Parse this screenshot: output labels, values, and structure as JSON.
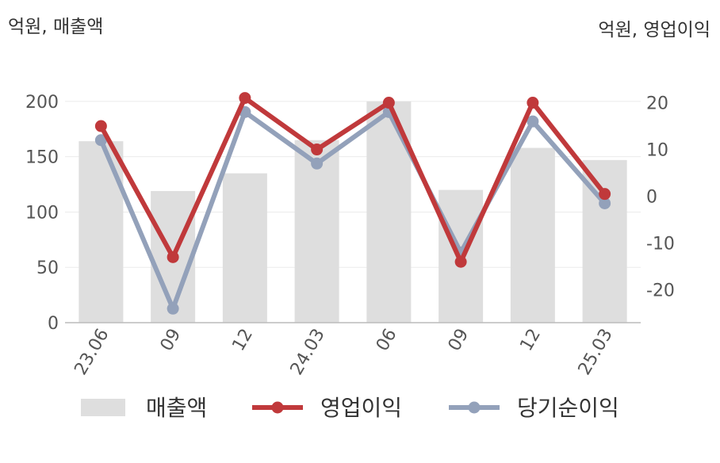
{
  "chart_data": {
    "type": "bar",
    "categories": [
      "23.06",
      "09",
      "12",
      "24.03",
      "06",
      "09",
      "12",
      "25.03"
    ],
    "left_axis": {
      "label": "억원, 매출액",
      "ylim": [
        0,
        220
      ],
      "ticks": [
        0,
        50,
        100,
        150,
        200
      ]
    },
    "right_axis": {
      "label": "억원, 영업이익",
      "ylim": [
        -27,
        25
      ],
      "ticks": [
        -20,
        -10,
        0,
        10,
        20
      ]
    },
    "grid": true,
    "legend_position": "bottom",
    "series": [
      {
        "name": "매출액",
        "kind": "bar",
        "axis": "left",
        "color": "#dedede",
        "values": [
          164,
          119,
          135,
          165,
          200,
          120,
          158,
          147
        ]
      },
      {
        "name": "영업이익",
        "kind": "line",
        "axis": "right",
        "color": "#c0393b",
        "values": [
          15,
          -13,
          21,
          10,
          20,
          -14,
          20,
          0.5
        ]
      },
      {
        "name": "당기순이익",
        "kind": "line",
        "axis": "right",
        "color": "#93a1ba",
        "values": [
          12,
          -24,
          18,
          7,
          18,
          -12,
          16,
          -1.5
        ]
      }
    ]
  }
}
